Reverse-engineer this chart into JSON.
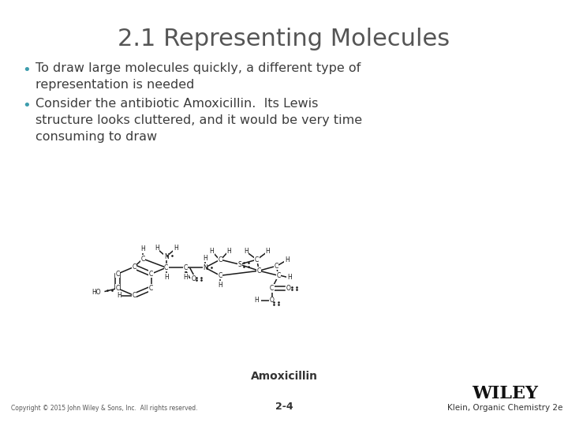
{
  "title": "2.1 Representing Molecules",
  "title_color": "#555555",
  "title_fontsize": 22,
  "bullet_color": "#3d9dad",
  "bullet_text_color": "#3d3d3d",
  "bullet1_line1": "To draw large molecules quickly, a different type of",
  "bullet1_line2": "representation is needed",
  "bullet2_line1": "Consider the antibiotic Amoxicillin.  Its Lewis",
  "bullet2_line2": "structure looks cluttered, and it would be very time",
  "bullet2_line3": "consuming to draw",
  "caption": "Amoxicillin",
  "footer_left": "Copyright © 2015 John Wiley & Sons, Inc.  All rights reserved.",
  "footer_center": "2-4",
  "footer_right": "Klein, Organic Chemistry 2e",
  "wiley_text": "WILEY",
  "background_color": "#ffffff"
}
